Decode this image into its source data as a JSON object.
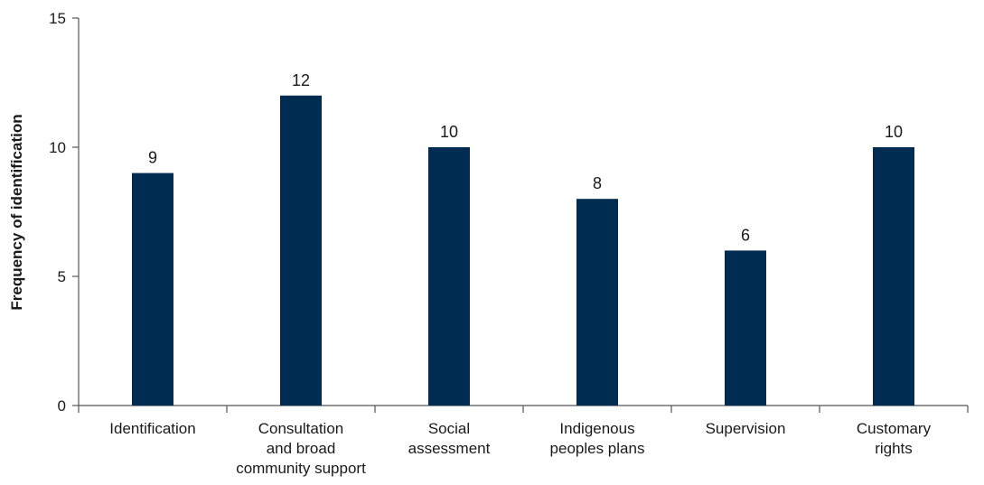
{
  "chart_data": {
    "type": "bar",
    "title": "",
    "xlabel": "",
    "ylabel": "Frequency of identification",
    "ylim": [
      0,
      15
    ],
    "yticks": [
      0,
      5,
      10,
      15
    ],
    "grid": false,
    "categories": [
      "Identification",
      "Consultation and broad community support",
      "Social assessment",
      "Indigenous peoples plans",
      "Supervision",
      "Customary rights"
    ],
    "category_lines": [
      [
        "Identification"
      ],
      [
        "Consultation",
        "and broad",
        "community support"
      ],
      [
        "Social",
        "assessment"
      ],
      [
        "Indigenous",
        "peoples plans"
      ],
      [
        "Supervision"
      ],
      [
        "Customary",
        "rights"
      ]
    ],
    "values": [
      9,
      12,
      10,
      8,
      6,
      10
    ],
    "bar_color": "#002c52"
  }
}
